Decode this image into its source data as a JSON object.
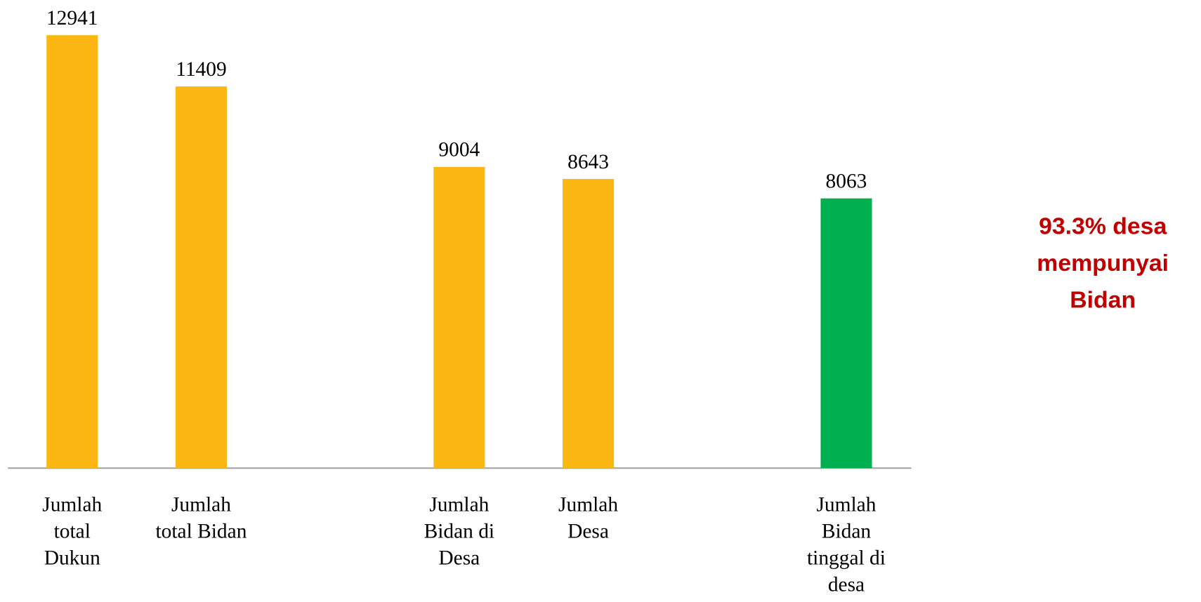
{
  "chart_data": {
    "type": "bar",
    "categories": [
      "Jumlah\ntotal\nDukun",
      "Jumlah\ntotal Bidan",
      null,
      "Jumlah\nBidan di\nDesa",
      "Jumlah\nDesa",
      null,
      "Jumlah\nBidan\ntinggal di\ndesa"
    ],
    "values": [
      12941,
      11409,
      null,
      9004,
      8643,
      null,
      8063
    ],
    "colors": [
      "#fdb714",
      "#fdb714",
      null,
      "#fdb714",
      "#fdb714",
      null,
      "#00b050"
    ],
    "annotation": "93.3% desa\nmempunyai\nBidan",
    "grid": false
  }
}
